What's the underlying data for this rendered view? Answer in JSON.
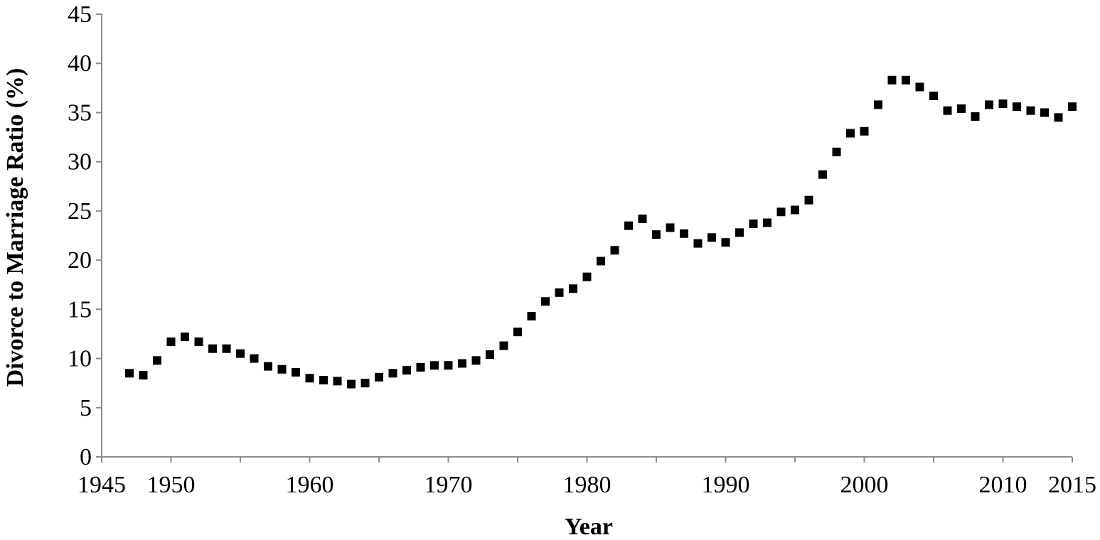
{
  "chart_data": {
    "type": "scatter",
    "title": "",
    "xlabel": "Year",
    "ylabel": "Divorce to Marriage Ratio (%)",
    "xlim": [
      1945,
      2015
    ],
    "ylim": [
      0,
      45
    ],
    "xticks": [
      1945,
      1950,
      1960,
      1970,
      1980,
      1990,
      2000,
      2010,
      2015
    ],
    "yticks": [
      0,
      5,
      10,
      15,
      20,
      25,
      30,
      35,
      40,
      45
    ],
    "grid": false,
    "legend": "none",
    "marker": "square",
    "series": [
      {
        "color": "#000000",
        "x": [
          1947,
          1948,
          1949,
          1950,
          1951,
          1952,
          1953,
          1954,
          1955,
          1956,
          1957,
          1958,
          1959,
          1960,
          1961,
          1962,
          1963,
          1964,
          1965,
          1966,
          1967,
          1968,
          1969,
          1970,
          1971,
          1972,
          1973,
          1974,
          1975,
          1976,
          1977,
          1978,
          1979,
          1980,
          1981,
          1982,
          1983,
          1984,
          1985,
          1986,
          1987,
          1988,
          1989,
          1990,
          1991,
          1992,
          1993,
          1994,
          1995,
          1996,
          1997,
          1998,
          1999,
          2000,
          2001,
          2002,
          2003,
          2004,
          2005,
          2006,
          2007,
          2008,
          2009,
          2010,
          2011,
          2012,
          2013,
          2014,
          2015
        ],
        "y": [
          8.5,
          8.3,
          9.8,
          11.7,
          12.2,
          11.7,
          11.0,
          11.0,
          10.5,
          10.0,
          9.2,
          8.9,
          8.6,
          8.0,
          7.8,
          7.7,
          7.4,
          7.5,
          8.1,
          8.5,
          8.8,
          9.1,
          9.3,
          9.3,
          9.5,
          9.8,
          10.4,
          11.3,
          12.7,
          14.3,
          15.8,
          16.7,
          17.1,
          18.3,
          19.9,
          21.0,
          23.5,
          24.2,
          22.6,
          23.3,
          22.7,
          21.7,
          22.3,
          21.8,
          22.8,
          23.7,
          23.8,
          24.9,
          25.1,
          26.1,
          28.7,
          31.0,
          32.9,
          33.1,
          35.8,
          38.3,
          38.3,
          37.6,
          36.7,
          35.2,
          35.4,
          34.6,
          35.8,
          35.9,
          35.6,
          35.2,
          35.0,
          34.5,
          35.6
        ]
      }
    ]
  }
}
